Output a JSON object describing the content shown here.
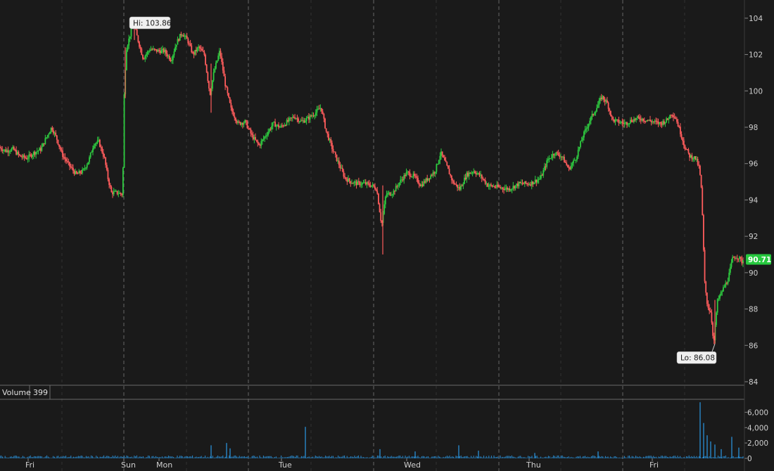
{
  "chart_data": {
    "type": "candlestick",
    "colors": {
      "background": "#1a1a1a",
      "up": "#2ecc40",
      "down": "#ff5c5c",
      "volume": "#2a8fd6",
      "grid": "#555555",
      "last_price_bg": "#27c93f"
    },
    "price_axis": {
      "min": 84,
      "max": 105,
      "ticks": [
        "104",
        "102",
        "100",
        "98",
        "96",
        "94",
        "92",
        "90",
        "88",
        "86",
        "84"
      ]
    },
    "volume_axis": {
      "min": 0,
      "max": 7500,
      "ticks": [
        "6,000",
        "4,000",
        "2,000",
        "0"
      ]
    },
    "volume_title": "Volume",
    "volume_last": "399",
    "day_labels": [
      {
        "label": "Fri",
        "t": 0.04
      },
      {
        "label": "Sun",
        "t": 0.176
      },
      {
        "label": "Mon",
        "t": 0.226
      },
      {
        "label": "Tue",
        "t": 0.4
      },
      {
        "label": "Wed",
        "t": 0.578
      },
      {
        "label": "Thu",
        "t": 0.752
      },
      {
        "label": "Fri",
        "t": 0.927
      }
    ],
    "session_separators": [
      0.176,
      0.353,
      0.531,
      0.709,
      0.885
    ],
    "minor_gridlines": [
      0.088,
      0.265,
      0.442,
      0.62,
      0.797,
      0.973
    ],
    "price_path": [
      [
        0.0,
        96.9
      ],
      [
        0.01,
        96.7
      ],
      [
        0.02,
        96.8
      ],
      [
        0.03,
        96.4
      ],
      [
        0.04,
        96.3
      ],
      [
        0.05,
        96.6
      ],
      [
        0.06,
        96.8
      ],
      [
        0.067,
        97.4
      ],
      [
        0.075,
        98.0
      ],
      [
        0.082,
        97.4
      ],
      [
        0.09,
        96.5
      ],
      [
        0.1,
        95.9
      ],
      [
        0.11,
        95.4
      ],
      [
        0.12,
        95.6
      ],
      [
        0.128,
        96.2
      ],
      [
        0.135,
        97.1
      ],
      [
        0.142,
        97.2
      ],
      [
        0.15,
        96.3
      ],
      [
        0.155,
        95.2
      ],
      [
        0.16,
        94.4
      ],
      [
        0.168,
        94.4
      ],
      [
        0.176,
        94.3
      ],
      [
        0.178,
        99.6
      ],
      [
        0.181,
        102.3
      ],
      [
        0.186,
        103.0
      ],
      [
        0.191,
        103.86
      ],
      [
        0.197,
        102.9
      ],
      [
        0.205,
        101.8
      ],
      [
        0.215,
        102.3
      ],
      [
        0.225,
        102.2
      ],
      [
        0.235,
        102.2
      ],
      [
        0.245,
        101.7
      ],
      [
        0.252,
        102.6
      ],
      [
        0.26,
        103.2
      ],
      [
        0.268,
        102.8
      ],
      [
        0.276,
        102.0
      ],
      [
        0.284,
        102.4
      ],
      [
        0.292,
        102.0
      ],
      [
        0.3,
        99.8
      ],
      [
        0.306,
        101.1
      ],
      [
        0.314,
        102.2
      ],
      [
        0.322,
        100.3
      ],
      [
        0.33,
        99.0
      ],
      [
        0.34,
        98.2
      ],
      [
        0.35,
        98.3
      ],
      [
        0.36,
        97.5
      ],
      [
        0.37,
        97.0
      ],
      [
        0.38,
        97.6
      ],
      [
        0.39,
        98.2
      ],
      [
        0.4,
        98.0
      ],
      [
        0.41,
        98.3
      ],
      [
        0.42,
        98.6
      ],
      [
        0.43,
        98.3
      ],
      [
        0.44,
        98.5
      ],
      [
        0.45,
        98.8
      ],
      [
        0.458,
        99.1
      ],
      [
        0.465,
        97.8
      ],
      [
        0.475,
        96.7
      ],
      [
        0.484,
        95.9
      ],
      [
        0.492,
        95.2
      ],
      [
        0.5,
        95.0
      ],
      [
        0.51,
        94.9
      ],
      [
        0.52,
        94.9
      ],
      [
        0.53,
        94.8
      ],
      [
        0.537,
        94.6
      ],
      [
        0.544,
        92.6
      ],
      [
        0.55,
        94.3
      ],
      [
        0.56,
        94.4
      ],
      [
        0.57,
        95.0
      ],
      [
        0.58,
        95.5
      ],
      [
        0.59,
        95.3
      ],
      [
        0.6,
        94.8
      ],
      [
        0.61,
        95.2
      ],
      [
        0.62,
        95.6
      ],
      [
        0.628,
        96.6
      ],
      [
        0.636,
        95.9
      ],
      [
        0.645,
        95.0
      ],
      [
        0.655,
        94.6
      ],
      [
        0.665,
        95.4
      ],
      [
        0.675,
        95.6
      ],
      [
        0.685,
        95.3
      ],
      [
        0.695,
        94.8
      ],
      [
        0.71,
        94.7
      ],
      [
        0.725,
        94.6
      ],
      [
        0.74,
        94.9
      ],
      [
        0.755,
        94.9
      ],
      [
        0.77,
        95.2
      ],
      [
        0.78,
        96.2
      ],
      [
        0.79,
        96.6
      ],
      [
        0.8,
        96.4
      ],
      [
        0.81,
        95.7
      ],
      [
        0.82,
        96.3
      ],
      [
        0.83,
        97.5
      ],
      [
        0.84,
        98.4
      ],
      [
        0.85,
        99.1
      ],
      [
        0.857,
        99.7
      ],
      [
        0.865,
        99.3
      ],
      [
        0.872,
        98.4
      ],
      [
        0.88,
        98.3
      ],
      [
        0.89,
        98.2
      ],
      [
        0.9,
        98.4
      ],
      [
        0.91,
        98.5
      ],
      [
        0.92,
        98.4
      ],
      [
        0.93,
        98.3
      ],
      [
        0.94,
        98.2
      ],
      [
        0.95,
        98.4
      ],
      [
        0.956,
        98.8
      ],
      [
        0.962,
        98.5
      ],
      [
        0.968,
        97.8
      ],
      [
        0.975,
        96.9
      ],
      [
        0.982,
        96.4
      ],
      [
        0.99,
        96.3
      ],
      [
        0.995,
        95.8
      ],
      [
        0.998,
        94.9
      ],
      [
        1.0,
        93.0
      ],
      [
        1.003,
        89.5
      ],
      [
        1.007,
        88.2
      ],
      [
        1.012,
        87.8
      ],
      [
        1.016,
        86.08
      ],
      [
        1.021,
        88.4
      ],
      [
        1.028,
        89.0
      ],
      [
        1.036,
        89.6
      ],
      [
        1.043,
        90.8
      ],
      [
        1.05,
        90.9
      ],
      [
        1.056,
        90.6
      ],
      [
        1.06,
        90.71
      ]
    ],
    "hi": {
      "label": "Hi: 103.86",
      "value": 103.86,
      "t": 0.191
    },
    "lo": {
      "label": "Lo: 86.08",
      "value": 86.08,
      "t": 1.016
    },
    "last": {
      "label": "90.71",
      "value": 90.71
    },
    "volume_spikes": [
      {
        "t": 0.3,
        "v": 1700
      },
      {
        "t": 0.322,
        "v": 2000
      },
      {
        "t": 0.327,
        "v": 1300
      },
      {
        "t": 0.434,
        "v": 4100
      },
      {
        "t": 0.54,
        "v": 1200
      },
      {
        "t": 0.59,
        "v": 900
      },
      {
        "t": 0.652,
        "v": 1700
      },
      {
        "t": 0.68,
        "v": 1000
      },
      {
        "t": 0.76,
        "v": 700
      },
      {
        "t": 0.85,
        "v": 900
      },
      {
        "t": 0.995,
        "v": 7300
      },
      {
        "t": 1.0,
        "v": 4600
      },
      {
        "t": 1.005,
        "v": 3000
      },
      {
        "t": 1.01,
        "v": 2200
      },
      {
        "t": 1.016,
        "v": 1800
      },
      {
        "t": 1.025,
        "v": 1200
      },
      {
        "t": 1.04,
        "v": 2800
      },
      {
        "t": 1.05,
        "v": 1400
      }
    ]
  }
}
